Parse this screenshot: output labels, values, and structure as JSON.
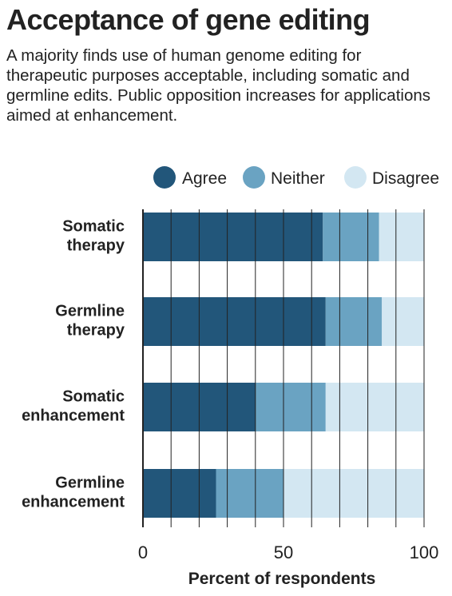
{
  "title": "Acceptance of gene editing",
  "subtitle": "A majority finds use of human genome editing for therapeutic purposes acceptable, including somatic and germline edits. Public opposition increases for applications aimed at enhancement.",
  "colors": {
    "agree": "#22567a",
    "neither": "#6aa3c2",
    "disagree": "#d3e7f2",
    "grid": "#222222"
  },
  "chart_data": {
    "type": "bar",
    "orientation": "horizontal",
    "stacked": true,
    "categories": [
      [
        "Somatic",
        "therapy"
      ],
      [
        "Germline",
        "therapy"
      ],
      [
        "Somatic",
        "enhancement"
      ],
      [
        "Germline",
        "enhancement"
      ]
    ],
    "series": [
      {
        "name": "Agree",
        "values": [
          64,
          65,
          40,
          26
        ]
      },
      {
        "name": "Neither",
        "values": [
          20,
          20,
          25,
          24
        ]
      },
      {
        "name": "Disagree",
        "values": [
          16,
          15,
          35,
          50
        ]
      }
    ],
    "xlabel": "Percent of respondents",
    "xlim": [
      0,
      100
    ],
    "xticks": [
      0,
      50,
      100
    ],
    "grid": true,
    "legend": "top-right"
  }
}
